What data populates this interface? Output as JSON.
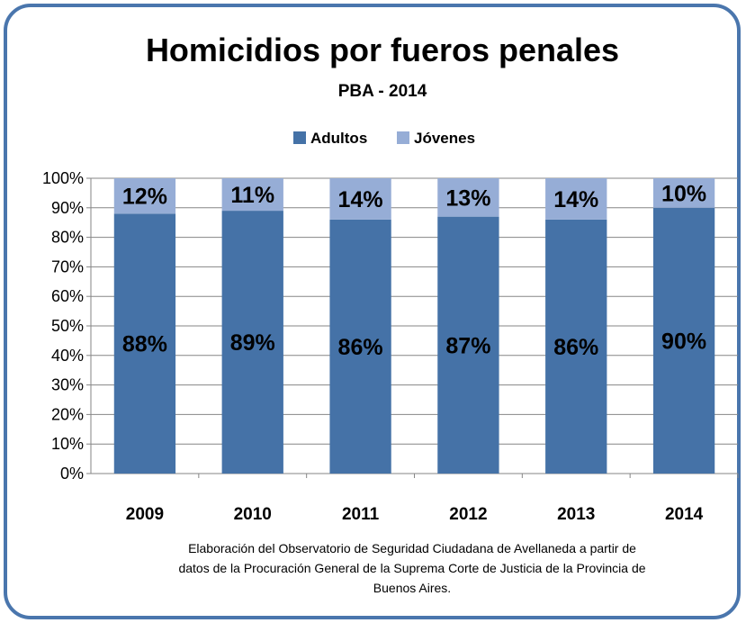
{
  "chart_data": {
    "type": "bar",
    "stacked": true,
    "title": "Homicidios por fueros penales",
    "subtitle": "PBA - 2014",
    "categories": [
      "2009",
      "2010",
      "2011",
      "2012",
      "2013",
      "2014"
    ],
    "series": [
      {
        "name": "Adultos",
        "values": [
          88,
          89,
          86,
          87,
          86,
          90
        ],
        "labels": [
          "88%",
          "89%",
          "86%",
          "87%",
          "86%",
          "90%"
        ],
        "color": "#4572a7"
      },
      {
        "name": "Jóvenes",
        "values": [
          12,
          11,
          14,
          13,
          14,
          10
        ],
        "labels": [
          "12%",
          "11%",
          "14%",
          "13%",
          "14%",
          "10%"
        ],
        "color": "#96add6"
      }
    ],
    "ylim": [
      0,
      100
    ],
    "yticks": [
      "0%",
      "10%",
      "20%",
      "30%",
      "40%",
      "50%",
      "60%",
      "70%",
      "80%",
      "90%",
      "100%"
    ],
    "grid": true,
    "legend_position": "top"
  },
  "note_lines": [
    "Elaboración del Observatorio de Seguridad Ciudadana de Avellaneda a partir de",
    "datos de la Procuración General de la Suprema Corte de Justicia de la Provincia de",
    "Buenos Aires."
  ],
  "colors": {
    "border": "#4a76ad",
    "grid": "#868686",
    "axis": "#868686"
  }
}
